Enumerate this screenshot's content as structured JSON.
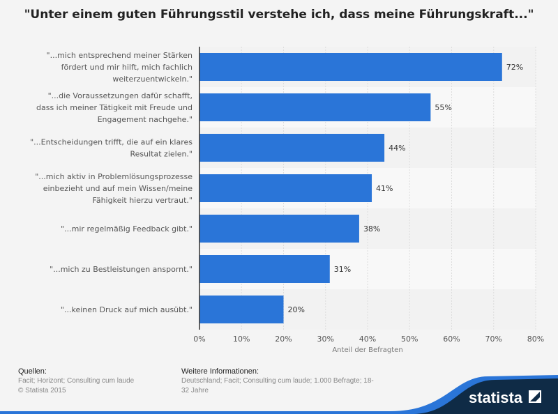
{
  "title": "\"Unter einem guten Führungsstil verstehe ich, dass meine Führungskraft...\"",
  "chart_data": {
    "type": "bar",
    "orientation": "horizontal",
    "categories": [
      [
        "\"...mich entsprechend meiner Stärken",
        "fördert und mir hilft, mich fachlich",
        "weiterzuentwickeln.\""
      ],
      [
        "\"...die Voraussetzungen dafür schafft,",
        "dass ich meiner Tätigkeit mit Freude und",
        "Engagement nachgehe.\""
      ],
      [
        "\"...Entscheidungen trifft, die auf ein klares",
        "Resultat zielen.\""
      ],
      [
        "\"...mich aktiv in Problemlösungsprozesse",
        "einbezieht und auf mein Wissen/meine",
        "Fähigkeit hierzu vertraut.\""
      ],
      [
        "\"...mir regelmäßig Feedback gibt.\""
      ],
      [
        "\"...mich zu Bestleistungen anspornt.\""
      ],
      [
        "\"...keinen Druck auf mich ausübt.\""
      ]
    ],
    "values": [
      72,
      55,
      44,
      41,
      38,
      31,
      20
    ],
    "data_labels": [
      "72%",
      "55%",
      "44%",
      "41%",
      "38%",
      "31%",
      "20%"
    ],
    "xlabel": "Anteil der Befragten",
    "xlim": [
      0,
      80
    ],
    "xticks": [
      "0%",
      "10%",
      "20%",
      "30%",
      "40%",
      "50%",
      "60%",
      "70%",
      "80%"
    ],
    "grid": true,
    "bar_color": "#2a75d8"
  },
  "footer": {
    "sources_heading": "Quellen:",
    "sources_lines": [
      "Facit; Horizont; Consulting cum laude",
      "© Statista 2015"
    ],
    "info_heading": "Weitere Informationen:",
    "info_lines": [
      "Deutschland; Facit; Consulting cum laude; 1.000 Befragte; 18-",
      "32 Jahre"
    ],
    "logo": "statista"
  }
}
